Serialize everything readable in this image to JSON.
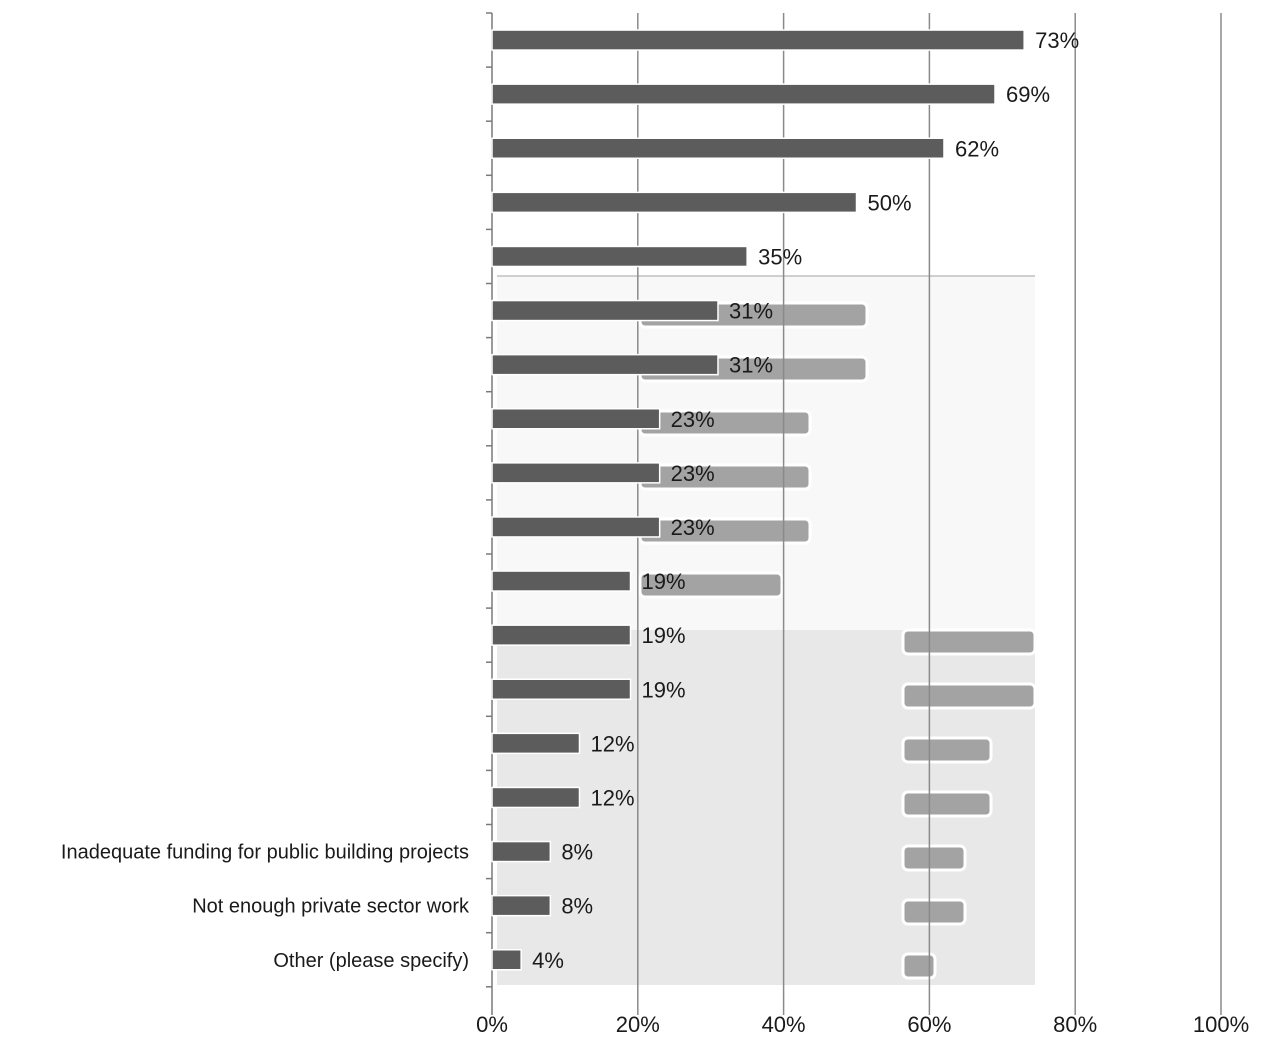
{
  "chart_data": {
    "type": "bar",
    "orientation": "horizontal",
    "categories": [
      "",
      "",
      "",
      "",
      "",
      "",
      "",
      "",
      "",
      "",
      "",
      "",
      "",
      "",
      "",
      "Inadequate funding for public building projects",
      "Not enough private sector work",
      "Other (please specify)"
    ],
    "values": [
      73,
      69,
      62,
      50,
      35,
      31,
      31,
      23,
      23,
      23,
      19,
      19,
      19,
      12,
      12,
      8,
      8,
      4
    ],
    "value_labels": [
      "73%",
      "69%",
      "62%",
      "50%",
      "35%",
      "31%",
      "31%",
      "23%",
      "23%",
      "23%",
      "19%",
      "19%",
      "19%",
      "12%",
      "12%",
      "8%",
      "8%",
      "4%"
    ],
    "x_ticks": [
      0,
      20,
      40,
      60,
      80,
      100
    ],
    "x_tick_labels": [
      "0%",
      "20%",
      "40%",
      "60%",
      "80%",
      "100%"
    ],
    "xlim": [
      0,
      100
    ],
    "grid": true,
    "colors": {
      "bar": "#5c5c5c",
      "bar_outline": "#ffffff",
      "grid": "#8a8a8a",
      "shadow_bar": "#a3a3a3",
      "panel": "#e8e8e8"
    }
  }
}
